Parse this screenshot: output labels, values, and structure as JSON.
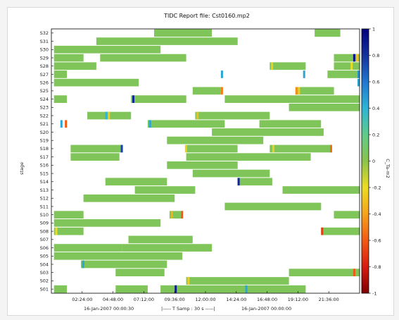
{
  "chart_data": {
    "type": "heatmap",
    "title": "TIDC Report file: Cst0160.mp2",
    "xlabel": "",
    "ylabel": "stage",
    "time_axis": {
      "tick_labels": [
        "02:24:00",
        "04:48:00",
        "07:12:00",
        "09:36:00",
        "12:00:00",
        "14:24:00",
        "16:48:00",
        "19:12:00",
        "21:36:00"
      ],
      "tick_hours": [
        2.4,
        4.8,
        7.2,
        9.6,
        12.0,
        14.4,
        16.8,
        19.2,
        21.6
      ],
      "range_hours": [
        0,
        24
      ],
      "start_label": "16-Jan-2007 00:00:30",
      "sampling_label": "|----- T Samp : 30 s -----|",
      "end_label": "16-Jan-2007 00:00:00"
    },
    "colorbar": {
      "label": "C_Ta-m2",
      "range": [
        -1,
        1
      ],
      "tick_labels": [
        "1",
        "0.8",
        "0.6",
        "0.4",
        "0.2",
        "0",
        "-0.2",
        "-0.4",
        "-0.6",
        "-0.8",
        "-1"
      ],
      "tick_values": [
        1,
        0.8,
        0.6,
        0.4,
        0.2,
        0,
        -0.2,
        -0.4,
        -0.6,
        -0.8,
        -1
      ],
      "colors": [
        "#7f0000",
        "#d61c10",
        "#f25a14",
        "#f5a21c",
        "#ecdc25",
        "#8bc34a",
        "#5fcb8a",
        "#2eb4d6",
        "#1f76d1",
        "#14329c",
        "#00007f"
      ]
    },
    "stages": [
      "S32",
      "S31",
      "S30",
      "S29",
      "S28",
      "S27",
      "S26",
      "S25",
      "S24",
      "S23",
      "S22",
      "S21",
      "S20",
      "S19",
      "S18",
      "S17",
      "S16",
      "S15",
      "S14",
      "S13",
      "S12",
      "S11",
      "S10",
      "S09",
      "S08",
      "S07",
      "S06",
      "S05",
      "S04",
      "S03",
      "S02",
      "S01"
    ],
    "base_value": 0.05,
    "segments": [
      {
        "stage": "S32",
        "start": 8.0,
        "end": 12.5,
        "value": 0.05
      },
      {
        "stage": "S32",
        "start": 20.5,
        "end": 22.5,
        "value": 0.05
      },
      {
        "stage": "S31",
        "start": 3.5,
        "end": 14.5,
        "value": 0.05
      },
      {
        "stage": "S30",
        "start": 0.2,
        "end": 8.5,
        "value": 0.05
      },
      {
        "stage": "S29",
        "start": 0.2,
        "end": 2.5,
        "value": 0.05
      },
      {
        "stage": "S29",
        "start": 3.8,
        "end": 10.5,
        "value": 0.05
      },
      {
        "stage": "S29",
        "start": 22.0,
        "end": 24.0,
        "value": 0.05
      },
      {
        "stage": "S28",
        "start": 0.2,
        "end": 3.5,
        "value": 0.05
      },
      {
        "stage": "S28",
        "start": 17.0,
        "end": 19.8,
        "value": 0.05
      },
      {
        "stage": "S28",
        "start": 22.0,
        "end": 24.0,
        "value": 0.05
      },
      {
        "stage": "S27",
        "start": 0.2,
        "end": 1.2,
        "value": 0.05
      },
      {
        "stage": "S27",
        "start": 21.5,
        "end": 24.0,
        "value": 0.05
      },
      {
        "stage": "S26",
        "start": 0.2,
        "end": 6.8,
        "value": 0.05
      },
      {
        "stage": "S25",
        "start": 11.0,
        "end": 13.2,
        "value": 0.05
      },
      {
        "stage": "S25",
        "start": 19.0,
        "end": 22.0,
        "value": 0.05
      },
      {
        "stage": "S24",
        "start": 0.2,
        "end": 1.2,
        "value": 0.05
      },
      {
        "stage": "S24",
        "start": 6.2,
        "end": 10.5,
        "value": 0.05
      },
      {
        "stage": "S24",
        "start": 13.5,
        "end": 24.0,
        "value": 0.05
      },
      {
        "stage": "S23",
        "start": 18.5,
        "end": 24.0,
        "value": 0.05
      },
      {
        "stage": "S22",
        "start": 2.8,
        "end": 6.2,
        "value": 0.05
      },
      {
        "stage": "S22",
        "start": 11.2,
        "end": 17.0,
        "value": 0.05
      },
      {
        "stage": "S21",
        "start": 7.5,
        "end": 13.5,
        "value": 0.05
      },
      {
        "stage": "S21",
        "start": 16.2,
        "end": 21.0,
        "value": 0.05
      },
      {
        "stage": "S20",
        "start": 12.5,
        "end": 21.2,
        "value": 0.05
      },
      {
        "stage": "S19",
        "start": 9.0,
        "end": 16.5,
        "value": 0.05
      },
      {
        "stage": "S18",
        "start": 1.5,
        "end": 5.5,
        "value": 0.05
      },
      {
        "stage": "S18",
        "start": 10.5,
        "end": 14.5,
        "value": 0.05
      },
      {
        "stage": "S18",
        "start": 17.0,
        "end": 21.8,
        "value": 0.05
      },
      {
        "stage": "S17",
        "start": 1.5,
        "end": 5.3,
        "value": 0.05
      },
      {
        "stage": "S17",
        "start": 10.5,
        "end": 20.2,
        "value": 0.05
      },
      {
        "stage": "S16",
        "start": 9.0,
        "end": 14.5,
        "value": 0.05
      },
      {
        "stage": "S15",
        "start": 11.0,
        "end": 17.0,
        "value": 0.05
      },
      {
        "stage": "S14",
        "start": 4.2,
        "end": 9.0,
        "value": 0.05
      },
      {
        "stage": "S14",
        "start": 14.5,
        "end": 17.2,
        "value": 0.05
      },
      {
        "stage": "S13",
        "start": 6.5,
        "end": 11.2,
        "value": 0.05
      },
      {
        "stage": "S13",
        "start": 18.0,
        "end": 24.0,
        "value": 0.05
      },
      {
        "stage": "S12",
        "start": 2.5,
        "end": 9.6,
        "value": 0.05
      },
      {
        "stage": "S11",
        "start": 13.5,
        "end": 21.0,
        "value": 0.05
      },
      {
        "stage": "S10",
        "start": 0.2,
        "end": 2.5,
        "value": 0.05
      },
      {
        "stage": "S10",
        "start": 9.2,
        "end": 10.2,
        "value": 0.05
      },
      {
        "stage": "S10",
        "start": 22.0,
        "end": 24.0,
        "value": 0.05
      },
      {
        "stage": "S09",
        "start": 0.2,
        "end": 8.5,
        "value": 0.05
      },
      {
        "stage": "S08",
        "start": 0.2,
        "end": 2.5,
        "value": 0.05
      },
      {
        "stage": "S08",
        "start": 21.0,
        "end": 24.0,
        "value": 0.05
      },
      {
        "stage": "S07",
        "start": 6.0,
        "end": 11.0,
        "value": 0.05
      },
      {
        "stage": "S06",
        "start": 0.2,
        "end": 5.5,
        "value": 0.05
      },
      {
        "stage": "S06",
        "start": 5.5,
        "end": 12.5,
        "value": 0.05
      },
      {
        "stage": "S05",
        "start": 0.2,
        "end": 10.2,
        "value": 0.05
      },
      {
        "stage": "S04",
        "start": 2.3,
        "end": 9.0,
        "value": 0.05
      },
      {
        "stage": "S03",
        "start": 5.0,
        "end": 8.8,
        "value": 0.05
      },
      {
        "stage": "S03",
        "start": 18.5,
        "end": 24.0,
        "value": 0.05
      },
      {
        "stage": "S02",
        "start": 10.5,
        "end": 18.5,
        "value": 0.05
      },
      {
        "stage": "S01",
        "start": 5.0,
        "end": 7.5,
        "value": 0.05
      },
      {
        "stage": "S01",
        "start": 0.2,
        "end": 1.2,
        "value": 0.05
      },
      {
        "stage": "S01",
        "start": 8.5,
        "end": 15.2,
        "value": 0.05
      },
      {
        "stage": "S01",
        "start": 15.0,
        "end": 19.8,
        "value": 0.05
      }
    ],
    "spots": [
      {
        "stage": "S29",
        "time": 23.5,
        "value": 0.95
      },
      {
        "stage": "S29",
        "time": 23.75,
        "value": -0.3
      },
      {
        "stage": "S28",
        "time": 23.3,
        "value": -0.2
      },
      {
        "stage": "S28",
        "time": 17.1,
        "value": -0.25
      },
      {
        "stage": "S27",
        "time": 13.2,
        "value": 0.45
      },
      {
        "stage": "S27",
        "time": 19.6,
        "value": 0.45
      },
      {
        "stage": "S27",
        "time": 24.0,
        "value": 0.5
      },
      {
        "stage": "S26",
        "time": 24.0,
        "value": 0.45
      },
      {
        "stage": "S25",
        "time": 13.2,
        "value": -0.5
      },
      {
        "stage": "S25",
        "time": 19.0,
        "value": -0.45
      },
      {
        "stage": "S25",
        "time": 19.2,
        "value": -0.25
      },
      {
        "stage": "S24",
        "time": 6.3,
        "value": 0.85
      },
      {
        "stage": "S22",
        "time": 4.2,
        "value": 0.4
      },
      {
        "stage": "S22",
        "time": 4.4,
        "value": -0.25
      },
      {
        "stage": "S22",
        "time": 11.3,
        "value": -0.3
      },
      {
        "stage": "S21",
        "time": 0.7,
        "value": 0.45
      },
      {
        "stage": "S21",
        "time": 1.05,
        "value": -0.6
      },
      {
        "stage": "S21",
        "time": 7.6,
        "value": 0.45
      },
      {
        "stage": "S18",
        "time": 5.4,
        "value": 0.75
      },
      {
        "stage": "S18",
        "time": 10.4,
        "value": -0.25
      },
      {
        "stage": "S18",
        "time": 17.2,
        "value": -0.25
      },
      {
        "stage": "S18",
        "time": 21.7,
        "value": -0.55
      },
      {
        "stage": "S14",
        "time": 14.5,
        "value": 0.85
      },
      {
        "stage": "S10",
        "time": 9.3,
        "value": -0.35
      },
      {
        "stage": "S10",
        "time": 10.1,
        "value": -0.6
      },
      {
        "stage": "S08",
        "time": 0.3,
        "value": -0.2
      },
      {
        "stage": "S08",
        "time": 21.0,
        "value": -0.7
      },
      {
        "stage": "S04",
        "time": 2.4,
        "value": 0.45
      },
      {
        "stage": "S03",
        "time": 23.5,
        "value": -0.6
      },
      {
        "stage": "S02",
        "time": 10.6,
        "value": -0.25
      },
      {
        "stage": "S01",
        "time": 9.6,
        "value": 0.9
      },
      {
        "stage": "S01",
        "time": 15.1,
        "value": 0.45
      }
    ]
  }
}
